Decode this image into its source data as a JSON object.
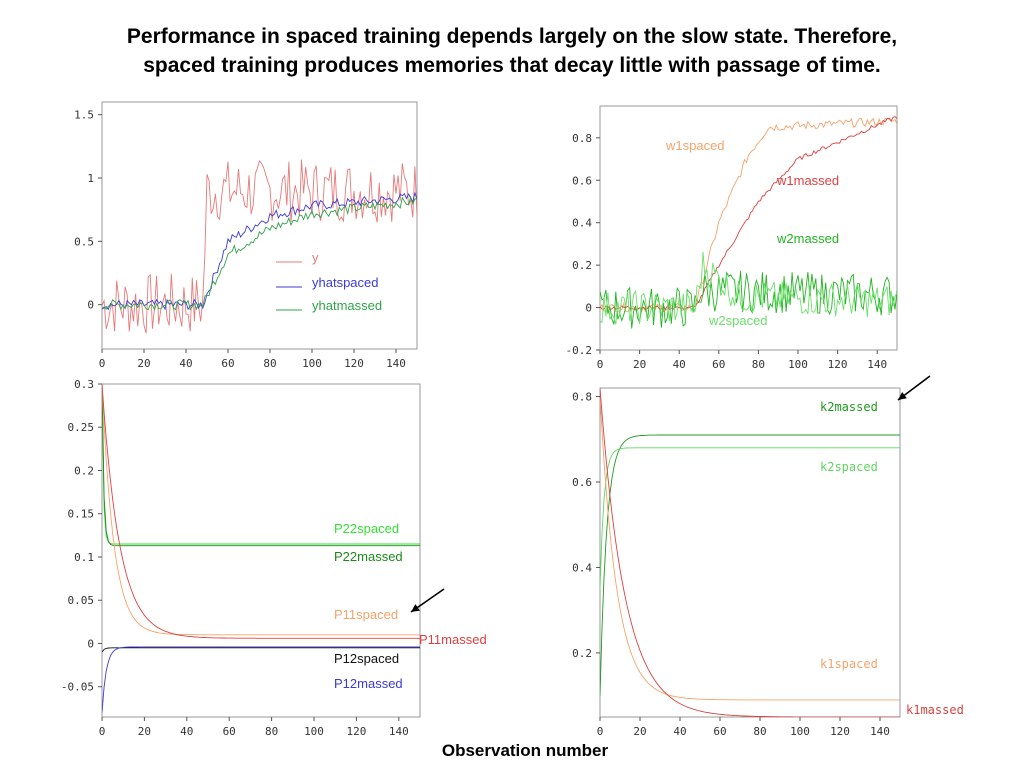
{
  "title_line1": "Performance in spaced training depends largely on the slow state.  Therefore,",
  "title_line2": "spaced training produces memories that decay little with passage of time.",
  "xaxis_label": "Observation number",
  "chart_data": [
    {
      "type": "line",
      "xlim": [
        0,
        150
      ],
      "ylim": [
        -0.35,
        1.6
      ],
      "xticks": [
        0,
        20,
        40,
        60,
        80,
        100,
        120,
        140
      ],
      "yticks": [
        0,
        0.5,
        1,
        1.5
      ],
      "ytick_labels": [
        "0",
        "0.5",
        "1",
        "1.5"
      ],
      "legend_placement": "center-right",
      "series": [
        {
          "name": "y",
          "color": "#e87a7a",
          "style": "noisy",
          "points": [
            [
              0,
              0.0
            ],
            [
              48,
              0.0
            ],
            [
              50,
              0.9
            ],
            [
              150,
              0.9
            ]
          ],
          "noise": 0.25
        },
        {
          "name": "yhatspaced",
          "color": "#3b3bd6",
          "style": "smooth",
          "points": [
            [
              0,
              0.0
            ],
            [
              48,
              0.0
            ],
            [
              60,
              0.5
            ],
            [
              80,
              0.7
            ],
            [
              100,
              0.78
            ],
            [
              150,
              0.85
            ]
          ],
          "noise": 0.04
        },
        {
          "name": "yhatmassed",
          "color": "#2fa44a",
          "style": "smooth",
          "points": [
            [
              0,
              0.0
            ],
            [
              48,
              0.0
            ],
            [
              60,
              0.4
            ],
            [
              80,
              0.6
            ],
            [
              100,
              0.72
            ],
            [
              150,
              0.82
            ]
          ],
          "noise": 0.04
        }
      ]
    },
    {
      "type": "line",
      "xlim": [
        0,
        150
      ],
      "ylim": [
        -0.2,
        0.95
      ],
      "xticks": [
        0,
        20,
        40,
        60,
        80,
        100,
        120,
        140
      ],
      "yticks": [
        -0.2,
        0,
        0.2,
        0.4,
        0.6,
        0.8
      ],
      "ytick_labels": [
        "-0.2",
        "0",
        "0.2",
        "0.4",
        "0.6",
        "0.8"
      ],
      "series": [
        {
          "name": "w1spaced",
          "color": "#f5a36a",
          "style": "smooth",
          "points": [
            [
              0,
              0.0
            ],
            [
              48,
              0.0
            ],
            [
              60,
              0.4
            ],
            [
              75,
              0.72
            ],
            [
              85,
              0.85
            ],
            [
              150,
              0.88
            ]
          ],
          "noise": 0.02
        },
        {
          "name": "w1massed",
          "color": "#e04040",
          "style": "smooth",
          "points": [
            [
              0,
              0.0
            ],
            [
              48,
              0.0
            ],
            [
              60,
              0.2
            ],
            [
              80,
              0.5
            ],
            [
              100,
              0.7
            ],
            [
              150,
              0.9
            ]
          ],
          "noise": 0.01
        },
        {
          "name": "w2massed",
          "color": "#22b522",
          "style": "noisy",
          "points": [
            [
              0,
              0.0
            ],
            [
              48,
              0.0
            ],
            [
              50,
              0.08
            ],
            [
              150,
              0.06
            ]
          ],
          "noise": 0.1
        },
        {
          "name": "w2spaced",
          "color": "#6be06b",
          "style": "noisy",
          "points": [
            [
              0,
              0.0
            ],
            [
              48,
              0.0
            ],
            [
              52,
              0.2
            ],
            [
              70,
              0.05
            ],
            [
              150,
              0.03
            ]
          ],
          "noise": 0.08
        }
      ]
    },
    {
      "type": "line",
      "xlim": [
        0,
        150
      ],
      "ylim": [
        -0.085,
        0.3
      ],
      "xticks": [
        0,
        20,
        40,
        60,
        80,
        100,
        120,
        140
      ],
      "yticks": [
        -0.05,
        0,
        0.05,
        0.1,
        0.15,
        0.2,
        0.25,
        0.3
      ],
      "ytick_labels": [
        "-0.05",
        "0",
        "0.05",
        "0.1",
        "0.15",
        "0.2",
        "0.25",
        "0.3"
      ],
      "series": [
        {
          "name": "P22spaced",
          "color": "#36e036",
          "style": "decay",
          "start": 0.3,
          "end": 0.115,
          "rate": 1.5
        },
        {
          "name": "P22massed",
          "color": "#1a8a1a",
          "style": "decay",
          "start": 0.3,
          "end": 0.113,
          "rate": 1.2
        },
        {
          "name": "P11spaced",
          "color": "#f5a36a",
          "style": "decay",
          "start": 0.3,
          "end": 0.01,
          "rate": 0.18
        },
        {
          "name": "P11massed",
          "color": "#e04040",
          "style": "decay",
          "start": 0.3,
          "end": 0.006,
          "rate": 0.12
        },
        {
          "name": "P12spaced",
          "color": "#111111",
          "style": "decay",
          "start": -0.01,
          "end": -0.005,
          "rate": 1.0
        },
        {
          "name": "P12massed",
          "color": "#3b3bd6",
          "style": "decay",
          "start": -0.08,
          "end": -0.004,
          "rate": 0.5
        }
      ]
    },
    {
      "type": "line",
      "xlim": [
        0,
        150
      ],
      "ylim": [
        0.05,
        0.82
      ],
      "xticks": [
        0,
        20,
        40,
        60,
        80,
        100,
        120,
        140
      ],
      "yticks": [
        0.2,
        0.4,
        0.6,
        0.8
      ],
      "ytick_labels": [
        "0.2",
        "0.4",
        "0.6",
        "0.8"
      ],
      "series": [
        {
          "name": "k2massed",
          "color": "#1f9a1f",
          "style": "rise",
          "start": 0.1,
          "end": 0.71,
          "rate": 0.3
        },
        {
          "name": "k2spaced",
          "color": "#5fd65f",
          "style": "rise",
          "start": 0.35,
          "end": 0.68,
          "rate": 0.5
        },
        {
          "name": "k1spaced",
          "color": "#f5a36a",
          "style": "decay",
          "start": 0.8,
          "end": 0.09,
          "rate": 0.12
        },
        {
          "name": "k1massed",
          "color": "#e04040",
          "style": "decay",
          "start": 0.82,
          "end": 0.05,
          "rate": 0.08
        }
      ]
    }
  ]
}
